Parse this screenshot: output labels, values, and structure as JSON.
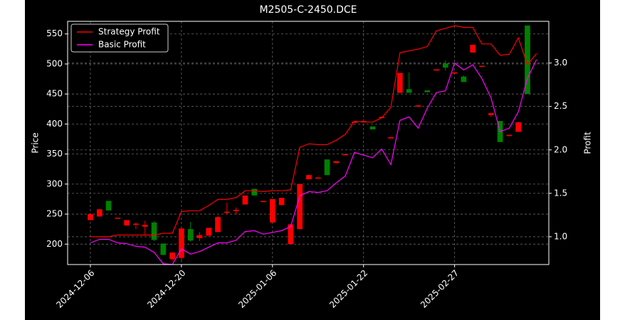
{
  "chart_data": {
    "type": "candlestick",
    "title": "M2505-C-2450.DCE",
    "y_label": "Price",
    "y2_label": "Profit",
    "categories": [
      "2024-12-06",
      null,
      null,
      null,
      null,
      null,
      null,
      null,
      null,
      null,
      "2024-12-20",
      null,
      null,
      null,
      null,
      null,
      null,
      null,
      null,
      null,
      "2025-01-06",
      null,
      null,
      null,
      null,
      null,
      null,
      null,
      null,
      null,
      "2025-01-22",
      null,
      null,
      null,
      null,
      null,
      null,
      null,
      null,
      null,
      "2025-02-27",
      null,
      null,
      null,
      null,
      null,
      null,
      null,
      null,
      null
    ],
    "open": [
      240,
      246,
      272,
      243,
      231,
      232,
      229,
      236,
      201,
      175,
      177,
      225,
      210,
      214,
      220,
      252,
      255,
      266,
      292,
      270,
      236,
      265,
      200,
      225,
      308,
      309,
      341,
      335,
      348,
      402,
      404,
      396,
      410,
      376,
      452,
      458,
      429,
      456,
      489,
      501,
      484,
      479,
      519,
      496,
      415,
      405,
      380,
      387,
      564,
      null
    ],
    "high": [
      250,
      258,
      272,
      244,
      240,
      236,
      239,
      238,
      201,
      186,
      227,
      237,
      220,
      227,
      247,
      269,
      261,
      281,
      292,
      272,
      275,
      277,
      233,
      300,
      315,
      311,
      341,
      338,
      350,
      404,
      405,
      396,
      412,
      378,
      485,
      486,
      431,
      456,
      491,
      506,
      486,
      481,
      532,
      497,
      418,
      405,
      382,
      403,
      564,
      null
    ],
    "low": [
      240,
      246,
      256,
      243,
      231,
      225,
      215,
      205,
      182,
      172,
      172,
      204,
      205,
      214,
      220,
      250,
      249,
      266,
      281,
      270,
      236,
      265,
      200,
      225,
      308,
      309,
      315,
      335,
      348,
      402,
      404,
      391,
      410,
      376,
      452,
      452,
      429,
      453,
      489,
      489,
      484,
      470,
      519,
      496,
      412,
      370,
      380,
      387,
      450,
      null
    ],
    "close": [
      250,
      258,
      256,
      244,
      240,
      234,
      232,
      207,
      182,
      186,
      226,
      206,
      215,
      227,
      245,
      254,
      257,
      281,
      281,
      272,
      275,
      277,
      233,
      300,
      315,
      311,
      315,
      338,
      350,
      404,
      405,
      391,
      412,
      378,
      485,
      452,
      431,
      453,
      491,
      494,
      486,
      470,
      532,
      497,
      418,
      370,
      382,
      403,
      450,
      null
    ],
    "up_color": "#ff0000",
    "down_color": "#008000",
    "series": [
      {
        "name": "Strategy Profit",
        "color": "#ff0000",
        "axis": "y2",
        "values": [
          1.0,
          1.0,
          1.0,
          1.02,
          1.02,
          1.02,
          1.02,
          1.02,
          1.04,
          1.04,
          1.29,
          1.3,
          1.3,
          1.36,
          1.43,
          1.43,
          1.45,
          1.53,
          1.53,
          1.52,
          1.53,
          1.53,
          1.54,
          2.03,
          2.07,
          2.06,
          2.06,
          2.11,
          2.18,
          2.33,
          2.32,
          2.32,
          2.37,
          2.49,
          3.12,
          3.14,
          3.16,
          3.19,
          3.37,
          3.4,
          3.43,
          3.41,
          3.41,
          3.22,
          3.22,
          3.09,
          3.1,
          3.29,
          2.98,
          3.11
        ]
      },
      {
        "name": "Basic Profit",
        "color": "#ff00ff",
        "axis": "y2",
        "values": [
          0.93,
          0.97,
          0.97,
          0.93,
          0.92,
          0.89,
          0.88,
          0.82,
          0.69,
          0.68,
          0.86,
          0.8,
          0.83,
          0.88,
          0.93,
          0.93,
          0.96,
          1.06,
          1.07,
          1.03,
          1.05,
          1.07,
          1.12,
          1.47,
          1.52,
          1.51,
          1.53,
          1.62,
          1.7,
          1.97,
          1.94,
          1.91,
          2.01,
          1.83,
          2.34,
          2.38,
          2.25,
          2.48,
          2.66,
          2.68,
          3.0,
          2.92,
          2.98,
          2.82,
          2.6,
          2.21,
          2.25,
          2.44,
          2.82,
          3.04
        ]
      }
    ],
    "ylim": [
      166,
      571
    ],
    "yticks": [
      200,
      250,
      300,
      350,
      400,
      450,
      500,
      550
    ],
    "y2lim": [
      0.68,
      3.48
    ],
    "y2ticks": [
      {
        "value": 1,
        "label": "1.0"
      },
      1.5,
      {
        "value": 2,
        "label": "2.0"
      },
      2.5,
      {
        "value": 3,
        "label": "3.0"
      }
    ],
    "grid": true,
    "legend": "upper left"
  }
}
